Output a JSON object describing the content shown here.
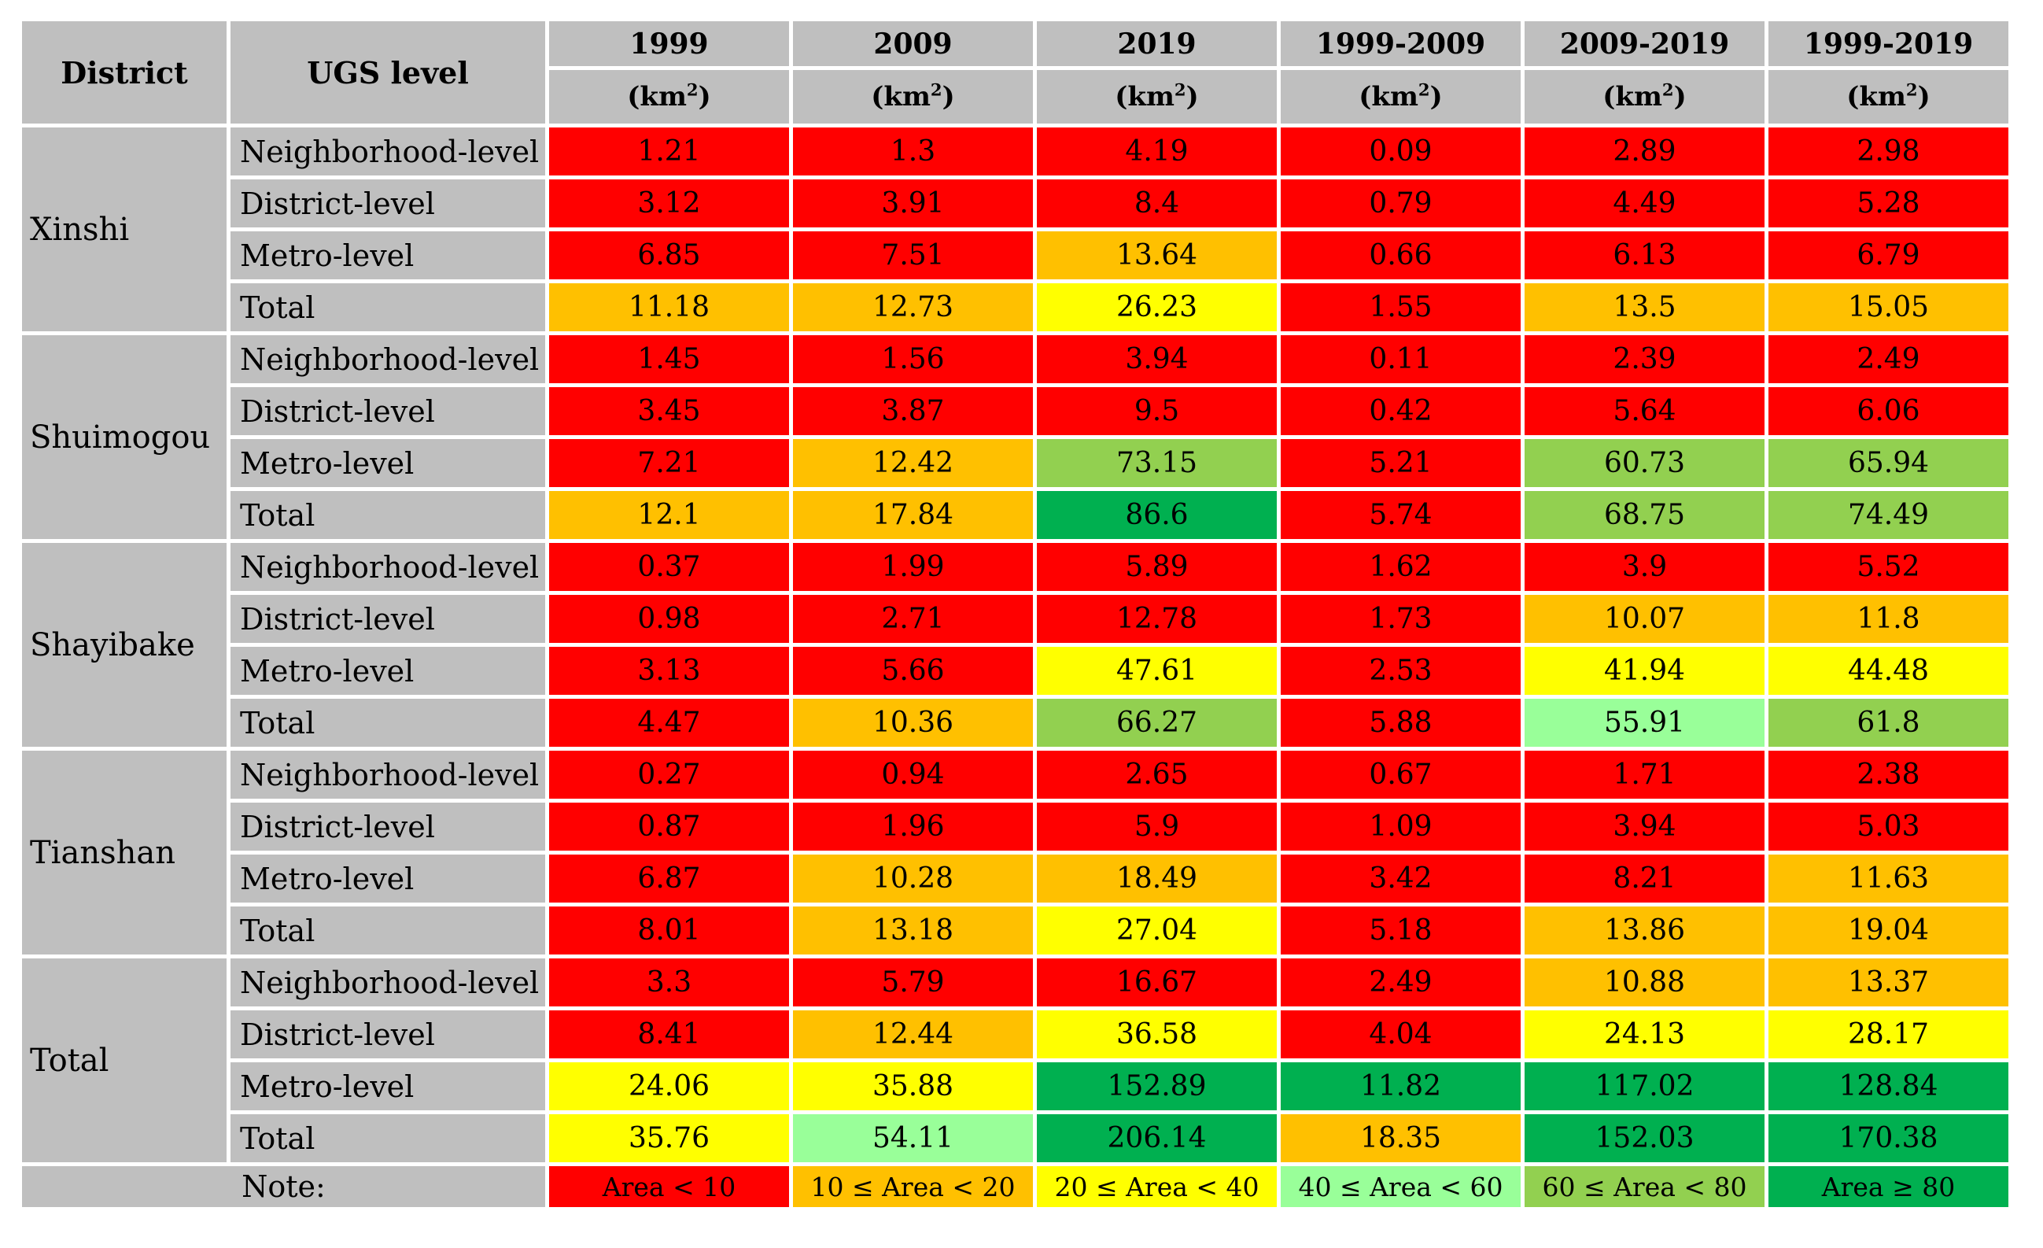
{
  "colors": {
    "red": "#FF0000",
    "orange": "#FFC000",
    "yellow": "#FFFF00",
    "palegreen": "#99FF99",
    "midgreen": "#92D050",
    "darkgreen": "#00B050",
    "header_gray": "#BFBFBF"
  },
  "header": {
    "district": "District",
    "ugs_level": "UGS level",
    "year_columns": [
      "1999",
      "2009",
      "2019",
      "1999-2009",
      "2009-2019",
      "1999-2019"
    ],
    "unit_pre": "(km",
    "unit_sup": "2",
    "unit_post": ")"
  },
  "groups": [
    {
      "district": "Xinshi",
      "rows": [
        {
          "label": "Neighborhood-level",
          "cells": [
            {
              "v": "1.21",
              "b": "red"
            },
            {
              "v": "1.3",
              "b": "red"
            },
            {
              "v": "4.19",
              "b": "red"
            },
            {
              "v": "0.09",
              "b": "red"
            },
            {
              "v": "2.89",
              "b": "red"
            },
            {
              "v": "2.98",
              "b": "red"
            }
          ]
        },
        {
          "label": "District-level",
          "cells": [
            {
              "v": "3.12",
              "b": "red"
            },
            {
              "v": "3.91",
              "b": "red"
            },
            {
              "v": "8.4",
              "b": "red"
            },
            {
              "v": "0.79",
              "b": "red"
            },
            {
              "v": "4.49",
              "b": "red"
            },
            {
              "v": "5.28",
              "b": "red"
            }
          ]
        },
        {
          "label": "Metro-level",
          "cells": [
            {
              "v": "6.85",
              "b": "red"
            },
            {
              "v": "7.51",
              "b": "red"
            },
            {
              "v": "13.64",
              "b": "orange"
            },
            {
              "v": "0.66",
              "b": "red"
            },
            {
              "v": "6.13",
              "b": "red"
            },
            {
              "v": "6.79",
              "b": "red"
            }
          ]
        },
        {
          "label": "Total",
          "cells": [
            {
              "v": "11.18",
              "b": "orange"
            },
            {
              "v": "12.73",
              "b": "orange"
            },
            {
              "v": "26.23",
              "b": "yellow"
            },
            {
              "v": "1.55",
              "b": "red"
            },
            {
              "v": "13.5",
              "b": "orange"
            },
            {
              "v": "15.05",
              "b": "orange"
            }
          ]
        }
      ]
    },
    {
      "district": "Shuimogou",
      "rows": [
        {
          "label": "Neighborhood-level",
          "cells": [
            {
              "v": "1.45",
              "b": "red"
            },
            {
              "v": "1.56",
              "b": "red"
            },
            {
              "v": "3.94",
              "b": "red"
            },
            {
              "v": "0.11",
              "b": "red"
            },
            {
              "v": "2.39",
              "b": "red"
            },
            {
              "v": "2.49",
              "b": "red"
            }
          ]
        },
        {
          "label": "District-level",
          "cells": [
            {
              "v": "3.45",
              "b": "red"
            },
            {
              "v": "3.87",
              "b": "red"
            },
            {
              "v": "9.5",
              "b": "red"
            },
            {
              "v": "0.42",
              "b": "red"
            },
            {
              "v": "5.64",
              "b": "red"
            },
            {
              "v": "6.06",
              "b": "red"
            }
          ]
        },
        {
          "label": "Metro-level",
          "cells": [
            {
              "v": "7.21",
              "b": "red"
            },
            {
              "v": "12.42",
              "b": "orange"
            },
            {
              "v": "73.15",
              "b": "midgreen"
            },
            {
              "v": "5.21",
              "b": "red"
            },
            {
              "v": "60.73",
              "b": "midgreen"
            },
            {
              "v": "65.94",
              "b": "midgreen"
            }
          ]
        },
        {
          "label": "Total",
          "cells": [
            {
              "v": "12.1",
              "b": "orange"
            },
            {
              "v": "17.84",
              "b": "orange"
            },
            {
              "v": "86.6",
              "b": "darkgreen"
            },
            {
              "v": "5.74",
              "b": "red"
            },
            {
              "v": "68.75",
              "b": "midgreen"
            },
            {
              "v": "74.49",
              "b": "midgreen"
            }
          ]
        }
      ]
    },
    {
      "district": "Shayibake",
      "rows": [
        {
          "label": "Neighborhood-level",
          "cells": [
            {
              "v": "0.37",
              "b": "red"
            },
            {
              "v": "1.99",
              "b": "red"
            },
            {
              "v": "5.89",
              "b": "red"
            },
            {
              "v": "1.62",
              "b": "red"
            },
            {
              "v": "3.9",
              "b": "red"
            },
            {
              "v": "5.52",
              "b": "red"
            }
          ]
        },
        {
          "label": "District-level",
          "cells": [
            {
              "v": "0.98",
              "b": "red"
            },
            {
              "v": "2.71",
              "b": "red"
            },
            {
              "v": "12.78",
              "b": "red"
            },
            {
              "v": "1.73",
              "b": "red"
            },
            {
              "v": "10.07",
              "b": "orange"
            },
            {
              "v": "11.8",
              "b": "orange"
            }
          ]
        },
        {
          "label": "Metro-level",
          "cells": [
            {
              "v": "3.13",
              "b": "red"
            },
            {
              "v": "5.66",
              "b": "red"
            },
            {
              "v": "47.61",
              "b": "yellow"
            },
            {
              "v": "2.53",
              "b": "red"
            },
            {
              "v": "41.94",
              "b": "yellow"
            },
            {
              "v": "44.48",
              "b": "yellow"
            }
          ]
        },
        {
          "label": "Total",
          "cells": [
            {
              "v": "4.47",
              "b": "red"
            },
            {
              "v": "10.36",
              "b": "orange"
            },
            {
              "v": "66.27",
              "b": "midgreen"
            },
            {
              "v": "5.88",
              "b": "red"
            },
            {
              "v": "55.91",
              "b": "palegreen"
            },
            {
              "v": "61.8",
              "b": "midgreen"
            }
          ]
        }
      ]
    },
    {
      "district": "Tianshan",
      "rows": [
        {
          "label": "Neighborhood-level",
          "cells": [
            {
              "v": "0.27",
              "b": "red"
            },
            {
              "v": "0.94",
              "b": "red"
            },
            {
              "v": "2.65",
              "b": "red"
            },
            {
              "v": "0.67",
              "b": "red"
            },
            {
              "v": "1.71",
              "b": "red"
            },
            {
              "v": "2.38",
              "b": "red"
            }
          ]
        },
        {
          "label": "District-level",
          "cells": [
            {
              "v": "0.87",
              "b": "red"
            },
            {
              "v": "1.96",
              "b": "red"
            },
            {
              "v": "5.9",
              "b": "red"
            },
            {
              "v": "1.09",
              "b": "red"
            },
            {
              "v": "3.94",
              "b": "red"
            },
            {
              "v": "5.03",
              "b": "red"
            }
          ]
        },
        {
          "label": "Metro-level",
          "cells": [
            {
              "v": "6.87",
              "b": "red"
            },
            {
              "v": "10.28",
              "b": "orange"
            },
            {
              "v": "18.49",
              "b": "orange"
            },
            {
              "v": "3.42",
              "b": "red"
            },
            {
              "v": "8.21",
              "b": "red"
            },
            {
              "v": "11.63",
              "b": "orange"
            }
          ]
        },
        {
          "label": "Total",
          "cells": [
            {
              "v": "8.01",
              "b": "red"
            },
            {
              "v": "13.18",
              "b": "orange"
            },
            {
              "v": "27.04",
              "b": "yellow"
            },
            {
              "v": "5.18",
              "b": "red"
            },
            {
              "v": "13.86",
              "b": "orange"
            },
            {
              "v": "19.04",
              "b": "orange"
            }
          ]
        }
      ]
    },
    {
      "district": "Total",
      "rows": [
        {
          "label": "Neighborhood-level",
          "cells": [
            {
              "v": "3.3",
              "b": "red"
            },
            {
              "v": "5.79",
              "b": "red"
            },
            {
              "v": "16.67",
              "b": "red"
            },
            {
              "v": "2.49",
              "b": "red"
            },
            {
              "v": "10.88",
              "b": "orange"
            },
            {
              "v": "13.37",
              "b": "orange"
            }
          ]
        },
        {
          "label": "District-level",
          "cells": [
            {
              "v": "8.41",
              "b": "red"
            },
            {
              "v": "12.44",
              "b": "orange"
            },
            {
              "v": "36.58",
              "b": "yellow"
            },
            {
              "v": "4.04",
              "b": "red"
            },
            {
              "v": "24.13",
              "b": "yellow"
            },
            {
              "v": "28.17",
              "b": "yellow"
            }
          ]
        },
        {
          "label": "Metro-level",
          "cells": [
            {
              "v": "24.06",
              "b": "yellow"
            },
            {
              "v": "35.88",
              "b": "yellow"
            },
            {
              "v": "152.89",
              "b": "darkgreen"
            },
            {
              "v": "11.82",
              "b": "darkgreen"
            },
            {
              "v": "117.02",
              "b": "darkgreen"
            },
            {
              "v": "128.84",
              "b": "darkgreen"
            }
          ]
        },
        {
          "label": "Total",
          "cells": [
            {
              "v": "35.76",
              "b": "yellow"
            },
            {
              "v": "54.11",
              "b": "palegreen"
            },
            {
              "v": "206.14",
              "b": "darkgreen"
            },
            {
              "v": "18.35",
              "b": "orange"
            },
            {
              "v": "152.03",
              "b": "darkgreen"
            },
            {
              "v": "170.38",
              "b": "darkgreen"
            }
          ]
        }
      ]
    }
  ],
  "note": {
    "label": "Note:",
    "legend": [
      {
        "label": "Area < 10",
        "b": "red"
      },
      {
        "label": "10 ≤ Area < 20",
        "b": "orange"
      },
      {
        "label": "20 ≤ Area < 40",
        "b": "yellow"
      },
      {
        "label": "40 ≤ Area < 60",
        "b": "palegreen"
      },
      {
        "label": "60 ≤ Area < 80",
        "b": "midgreen"
      },
      {
        "label": "Area ≥ 80",
        "b": "darkgreen"
      }
    ]
  }
}
